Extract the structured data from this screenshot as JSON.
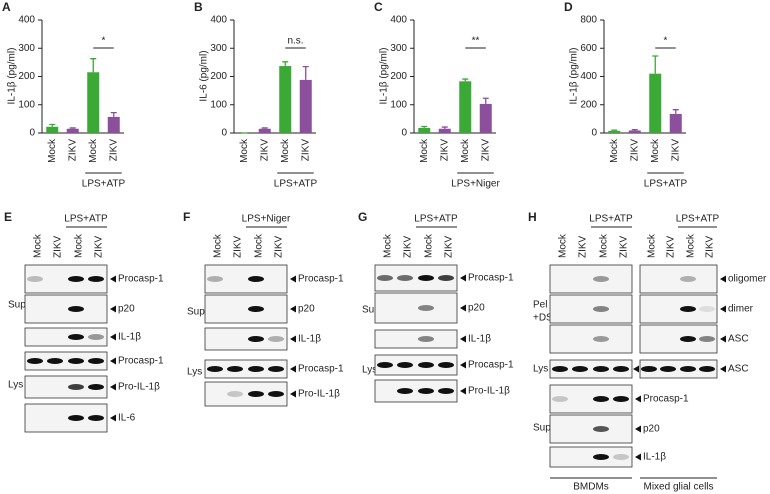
{
  "chart_data": [
    {
      "type": "bar",
      "panel": "A",
      "ylabel": "IL-1β (pg/ml)",
      "categories": [
        "Mock",
        "ZIKV",
        "Mock",
        "ZIKV"
      ],
      "values": [
        22,
        15,
        215,
        57
      ],
      "errors": [
        8,
        3,
        48,
        15
      ],
      "colors": [
        "#3aa935",
        "#8b4f9c",
        "#3aa935",
        "#8b4f9c"
      ],
      "group": "LPS+ATP",
      "significance": "*",
      "ylim": [
        0,
        400
      ],
      "yticks": [
        0,
        100,
        200,
        300,
        400
      ]
    },
    {
      "type": "bar",
      "panel": "B",
      "ylabel": "IL-6 (pg/ml)",
      "categories": [
        "Mock",
        "ZIKV",
        "Mock",
        "ZIKV"
      ],
      "values": [
        0,
        15,
        237,
        188
      ],
      "errors": [
        0,
        3,
        15,
        47
      ],
      "colors": [
        "#3aa935",
        "#8b4f9c",
        "#3aa935",
        "#8b4f9c"
      ],
      "group": "LPS+ATP",
      "significance": "n.s.",
      "ylim": [
        0,
        400
      ],
      "yticks": [
        0,
        100,
        200,
        300,
        400
      ]
    },
    {
      "type": "bar",
      "panel": "C",
      "ylabel": "IL-1β (pg/ml)",
      "categories": [
        "Mock",
        "ZIKV",
        "Mock",
        "ZIKV"
      ],
      "values": [
        18,
        15,
        183,
        103
      ],
      "errors": [
        5,
        6,
        8,
        20
      ],
      "colors": [
        "#3aa935",
        "#8b4f9c",
        "#3aa935",
        "#8b4f9c"
      ],
      "group": "LPS+Niger",
      "significance": "**",
      "ylim": [
        0,
        400
      ],
      "yticks": [
        0,
        100,
        200,
        300,
        400
      ]
    },
    {
      "type": "bar",
      "panel": "D",
      "ylabel": "IL-1β (pg/ml)",
      "categories": [
        "Mock",
        "ZIKV",
        "Mock",
        "ZIKV"
      ],
      "values": [
        15,
        18,
        420,
        135
      ],
      "errors": [
        5,
        6,
        125,
        30
      ],
      "colors": [
        "#3aa935",
        "#8b4f9c",
        "#3aa935",
        "#8b4f9c"
      ],
      "group": "LPS+ATP",
      "significance": "*",
      "ylim": [
        0,
        800
      ],
      "yticks": [
        0,
        200,
        400,
        600,
        800
      ]
    }
  ],
  "blots": [
    {
      "label": "E",
      "lanes": [
        "Mock",
        "ZIKV",
        "Mock",
        "ZIKV"
      ],
      "treatment": "LPS+ATP",
      "sections": [
        {
          "name": "Sup",
          "bands": [
            "Procasp-1",
            "p20",
            "IL-1β"
          ]
        },
        {
          "name": "Lys",
          "bands": [
            "Procasp-1",
            "Pro-IL-1β",
            "IL-6"
          ]
        }
      ]
    },
    {
      "label": "F",
      "lanes": [
        "Mock",
        "ZIKV",
        "Mock",
        "ZIKV"
      ],
      "treatment": "LPS+Niger",
      "sections": [
        {
          "name": "Sup",
          "bands": [
            "Procasp-1",
            "p20",
            "IL-1β"
          ]
        },
        {
          "name": "Lys",
          "bands": [
            "Procasp-1",
            "Pro-IL-1β"
          ]
        }
      ]
    },
    {
      "label": "G",
      "lanes": [
        "Mock",
        "ZIKV",
        "Mock",
        "ZIKV"
      ],
      "treatment": "LPS+ATP",
      "sections": [
        {
          "name": "Sup",
          "bands": [
            "Procasp-1",
            "p20",
            "IL-1β"
          ]
        },
        {
          "name": "Lys",
          "bands": [
            "Procasp-1",
            "Pro-IL-1β"
          ]
        }
      ]
    },
    {
      "label": "H",
      "groups": [
        {
          "name": "BMDMs",
          "lanes": [
            "Mock",
            "ZIKV",
            "Mock",
            "ZIKV"
          ],
          "treatment": "LPS+ATP"
        },
        {
          "name": "Mixed glial cells",
          "lanes": [
            "Mock",
            "ZIKV",
            "Mock",
            "ZIKV"
          ],
          "treatment": "LPS+ATP"
        }
      ],
      "sections": [
        {
          "name": [
            "Pel",
            "+DSS"
          ],
          "bands": [
            "oligomer",
            "dimer",
            "ASC"
          ]
        },
        {
          "name": [
            "Lys"
          ],
          "bands": [
            "ASC"
          ]
        },
        {
          "name": [
            "Sup"
          ],
          "bands": [
            "Procasp-1",
            "p20",
            "IL-1β"
          ]
        }
      ]
    }
  ]
}
